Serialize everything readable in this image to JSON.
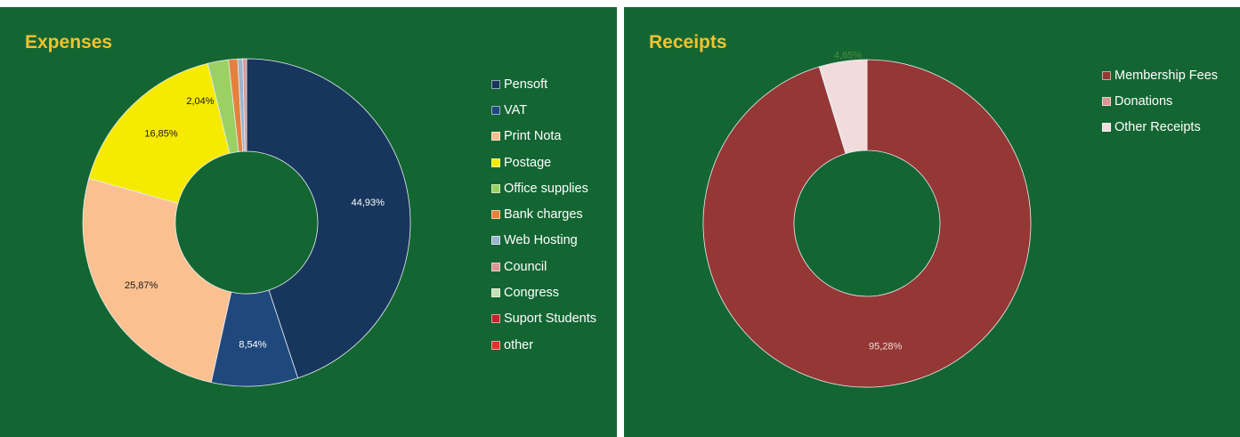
{
  "chart_data": [
    {
      "type": "pie",
      "title": "Expenses",
      "legend": "right",
      "categories": [
        "Pensoft",
        "VAT",
        "Print Nota",
        "Postage",
        "Office supplies",
        "Bank charges",
        "Web Hosting",
        "Council",
        "Congress",
        "Suport Students",
        "other"
      ],
      "values": [
        44.93,
        8.54,
        25.87,
        16.85,
        2.04,
        0.9,
        0.5,
        0.37,
        0,
        0,
        0
      ],
      "labels": [
        "44,93%",
        "8,54%",
        "25,87%",
        "16,85%",
        "2,04%",
        "",
        "",
        "",
        "",
        "",
        ""
      ],
      "colors": [
        "#17365d",
        "#1f497d",
        "#fac090",
        "#f6ea00",
        "#9bd162",
        "#e5813c",
        "#9db4ce",
        "#d99795",
        "#c5e0b3",
        "#c0272d",
        "#e03131"
      ],
      "label_colors": [
        "#ffffff",
        "#ffffff",
        "#1a1a1a",
        "#1a1a1a",
        "#1a1a1a",
        "#1a1a1a",
        "#1a1a1a",
        "#1a1a1a",
        "#1a1a1a",
        "#1a1a1a",
        "#1a1a1a"
      ]
    },
    {
      "type": "pie",
      "title": "Receipts",
      "legend": "top-right",
      "categories": [
        "Membership Fees",
        "Donations",
        "Other Receipts"
      ],
      "values": [
        95.28,
        0.07,
        4.65
      ],
      "labels": [
        "95,28%",
        "",
        "4,65%"
      ],
      "colors": [
        "#953735",
        "#d99795",
        "#f2dcdb"
      ],
      "label_colors": [
        "#f2dcdb",
        "#1a1a1a",
        "#4f8a3c"
      ]
    }
  ]
}
